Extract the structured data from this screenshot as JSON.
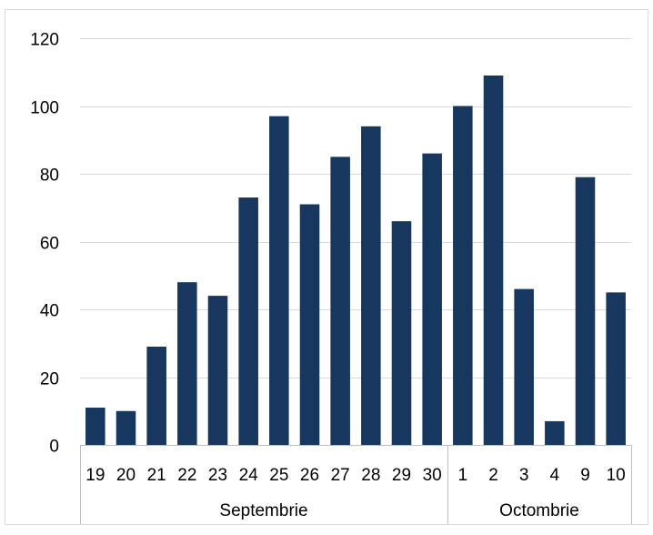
{
  "chart_data": {
    "type": "bar",
    "title": "",
    "xlabel": "",
    "ylabel": "",
    "ylim": [
      0,
      120
    ],
    "yticks": [
      0,
      20,
      40,
      60,
      80,
      100,
      120
    ],
    "grid": true,
    "legend": "none",
    "bar_color": "#17375e",
    "categories": [
      "19",
      "20",
      "21",
      "22",
      "23",
      "24",
      "25",
      "26",
      "27",
      "28",
      "29",
      "30",
      "1",
      "2",
      "3",
      "4",
      "9",
      "10"
    ],
    "values": [
      11,
      10,
      29,
      48,
      44,
      73,
      97,
      71,
      85,
      94,
      66,
      86,
      100,
      109,
      46,
      7,
      79,
      45
    ],
    "groups": [
      {
        "label": "Septembrie",
        "count": 12
      },
      {
        "label": "Octombrie",
        "count": 6
      }
    ]
  }
}
